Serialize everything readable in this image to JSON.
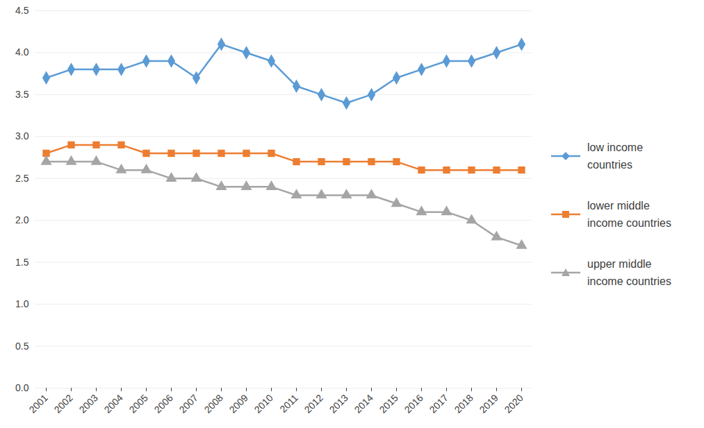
{
  "chart_data": {
    "type": "line",
    "categories": [
      "2001",
      "2002",
      "2003",
      "2004",
      "2005",
      "2006",
      "2007",
      "2008",
      "2009",
      "2010",
      "2011",
      "2012",
      "2013",
      "2014",
      "2015",
      "2016",
      "2017",
      "2018",
      "2019",
      "2020"
    ],
    "series": [
      {
        "name": "low income countries",
        "color": "#5b9bd5",
        "marker": "diamond",
        "values": [
          3.7,
          3.8,
          3.8,
          3.8,
          3.9,
          3.9,
          3.7,
          4.1,
          4.0,
          3.9,
          3.6,
          3.5,
          3.4,
          3.5,
          3.7,
          3.8,
          3.9,
          3.9,
          4.0,
          4.1
        ]
      },
      {
        "name": "lower middle income countries",
        "color": "#ed7d31",
        "marker": "square",
        "values": [
          2.8,
          2.9,
          2.9,
          2.9,
          2.8,
          2.8,
          2.8,
          2.8,
          2.8,
          2.8,
          2.7,
          2.7,
          2.7,
          2.7,
          2.7,
          2.6,
          2.6,
          2.6,
          2.6,
          2.6
        ]
      },
      {
        "name": "upper middle income countries",
        "color": "#a5a5a5",
        "marker": "triangle",
        "values": [
          2.7,
          2.7,
          2.7,
          2.6,
          2.6,
          2.5,
          2.5,
          2.4,
          2.4,
          2.4,
          2.3,
          2.3,
          2.3,
          2.3,
          2.2,
          2.1,
          2.1,
          2.0,
          1.8,
          1.7
        ]
      }
    ],
    "ylim": [
      0,
      4.5
    ],
    "yticks": [
      0,
      0.5,
      1,
      1.5,
      2,
      2.5,
      3,
      3.5,
      4,
      4.5
    ],
    "grid": true,
    "legend": "right"
  }
}
